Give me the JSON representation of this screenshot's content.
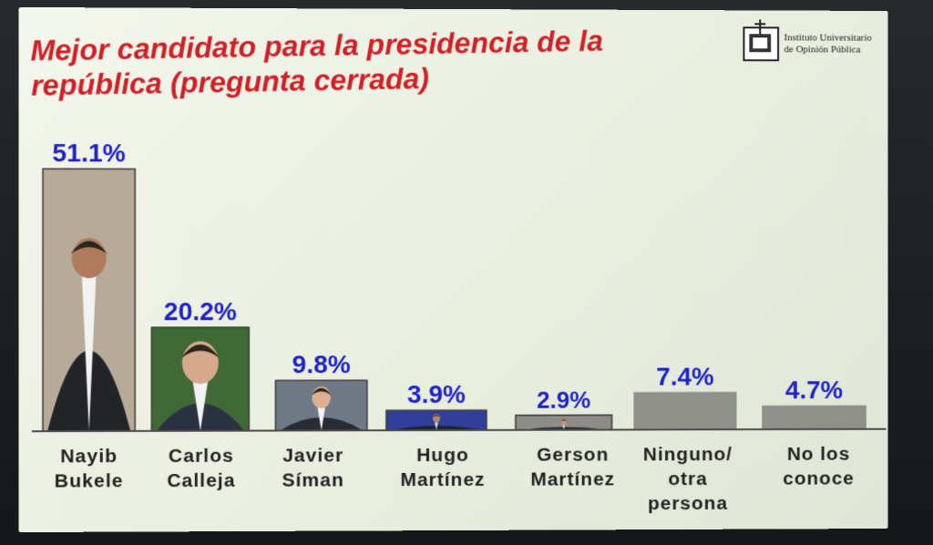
{
  "title": "Mejor candidato para la presidencia de la república (pregunta cerrada)",
  "logo": {
    "name": "Instituto Universitario de Opinión Pública",
    "line1": "Instituto Universitario",
    "line2": "de Opinión Pública"
  },
  "colors": {
    "title": "#d11f26",
    "value_labels": "#1d22c9",
    "category_labels": "#222222",
    "plain_bar": "#8e9089",
    "photo_bar_frame": "#3a3a3a"
  },
  "chart_data": {
    "type": "bar",
    "title": "Mejor candidato para la presidencia de la república (pregunta cerrada)",
    "categories": [
      [
        "Nayib",
        "Bukele"
      ],
      [
        "Carlos",
        "Calleja"
      ],
      [
        "Javier",
        "Síman"
      ],
      [
        "Hugo",
        "Martínez"
      ],
      [
        "Gerson",
        "Martínez"
      ],
      [
        "Ninguno/",
        "otra",
        "persona"
      ],
      [
        "No los",
        "conoce"
      ]
    ],
    "values": [
      51.1,
      20.2,
      9.8,
      3.9,
      2.9,
      7.4,
      4.7
    ],
    "value_labels": [
      "51.1%",
      "20.2%",
      "9.8%",
      "3.9%",
      "2.9%",
      "7.4%",
      "4.7%"
    ],
    "bar_fill": [
      "photo",
      "photo",
      "photo",
      "photo",
      "photo",
      "gray",
      "gray"
    ],
    "unit": "%",
    "ylim": [
      0,
      51.1
    ],
    "grid": false,
    "legend": "none"
  }
}
